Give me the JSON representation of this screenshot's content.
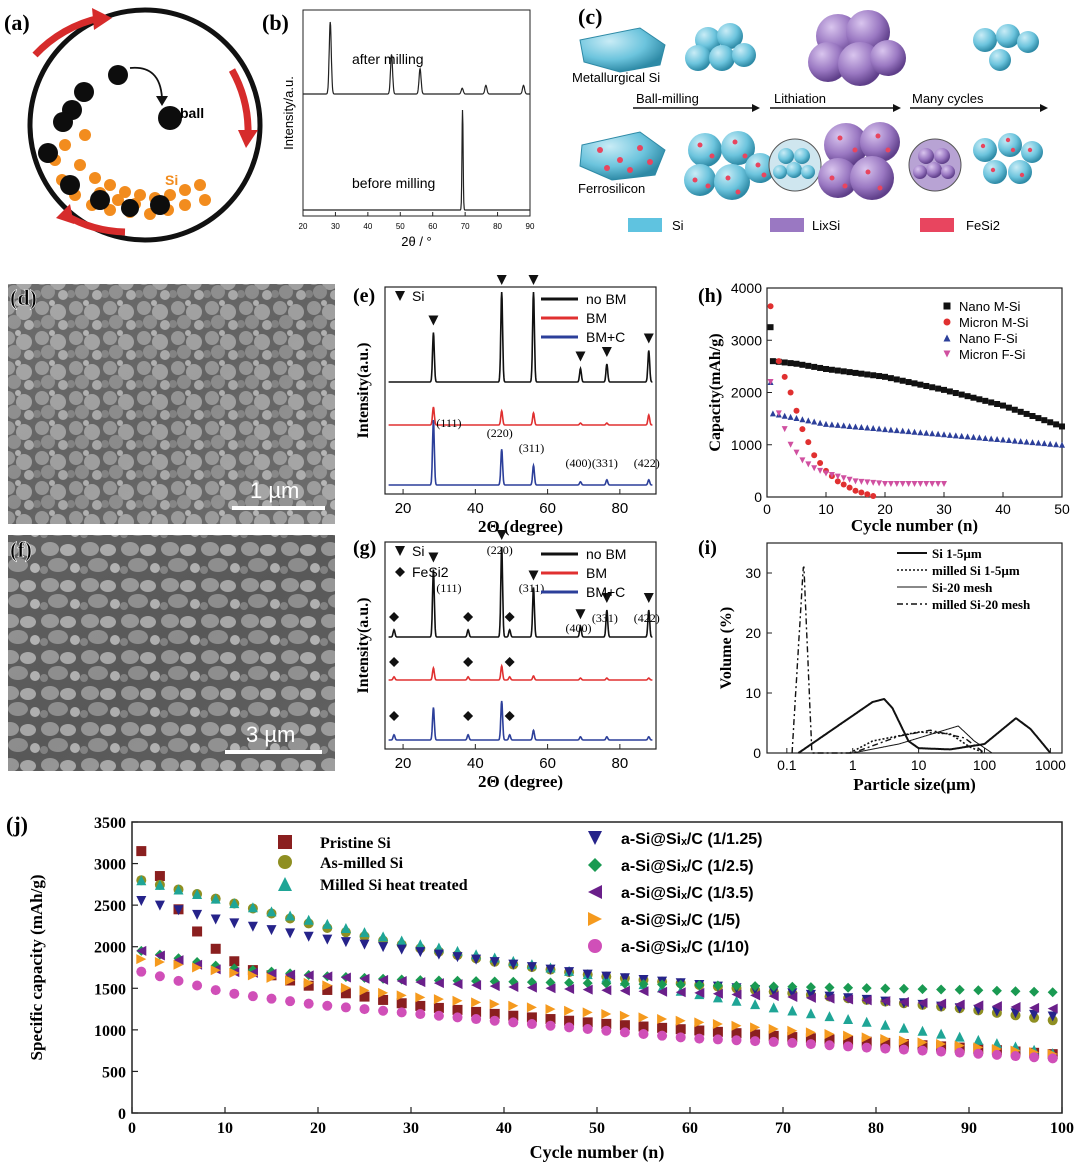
{
  "panel_labels": {
    "a": "(a)",
    "b": "(b)",
    "c": "(c)",
    "d": "(d)",
    "e": "(e)",
    "f": "(f)",
    "g": "(g)",
    "h": "(h)",
    "i": "(i)",
    "j": "(j)"
  },
  "colors": {
    "black": "#111111",
    "red": "#e03030",
    "blue": "#2c3f9a",
    "si": "#5fc3e0",
    "lixsi": "#9a78c2",
    "fesi2": "#e8455f",
    "orange": "#f28c1e"
  },
  "panel_a": {
    "ball_label": "ball",
    "si_label": "Si"
  },
  "panel_c": {
    "labels": {
      "metallurgical": "Metallurgical Si",
      "ferrosilicon": "Ferrosilicon",
      "ball_milling": "Ball-milling",
      "lithiation": "Lithiation",
      "many_cycles": "Many cycles"
    },
    "legend": [
      {
        "name": "Si",
        "color": "#5fc3e0"
      },
      {
        "name": "LixSi",
        "color": "#9a78c2"
      },
      {
        "name": "FeSi2",
        "color": "#e8455f"
      }
    ]
  },
  "panel_d": {
    "scale_bar": "1 µm"
  },
  "panel_f": {
    "scale_bar": "3 µm"
  },
  "chart_data": [
    {
      "id": "b",
      "type": "line",
      "title": "",
      "xlabel": "2θ / °",
      "ylabel": "Intensity/a.u.",
      "xlim": [
        20,
        90
      ],
      "xticks": [
        20,
        30,
        40,
        50,
        60,
        70,
        80,
        90
      ],
      "series": [
        {
          "name": "after milling",
          "peaks": [
            {
              "x": 28.4,
              "h": 1.0
            },
            {
              "x": 47.3,
              "h": 0.55
            },
            {
              "x": 56.1,
              "h": 0.35
            },
            {
              "x": 69.1,
              "h": 0.08
            },
            {
              "x": 76.4,
              "h": 0.12
            },
            {
              "x": 88.0,
              "h": 0.12
            }
          ]
        },
        {
          "name": "before milling",
          "peaks": [
            {
              "x": 69.2,
              "h": 1.0
            }
          ]
        }
      ]
    },
    {
      "id": "e",
      "type": "line",
      "xlabel": "2Θ (degree)",
      "ylabel": "Intensity(a.u.)",
      "xlim": [
        15,
        90
      ],
      "xticks": [
        20,
        40,
        60,
        80
      ],
      "marker_label": "Si",
      "legend": [
        {
          "name": "no BM",
          "color": "#111111"
        },
        {
          "name": "BM",
          "color": "#e03030"
        },
        {
          "name": "BM+C",
          "color": "#2c3f9a"
        }
      ],
      "peak_positions": [
        28.4,
        47.3,
        56.1,
        69.1,
        76.4,
        88.0
      ],
      "hkl": [
        "(111)",
        "(220)",
        "(311)",
        "(400)",
        "(331)",
        "(422)"
      ],
      "series": [
        {
          "name": "no BM",
          "heights": [
            0.55,
            1.0,
            1.0,
            0.15,
            0.2,
            0.35
          ]
        },
        {
          "name": "BM",
          "heights": [
            0.45,
            0.35,
            0.3,
            0.05,
            0.05,
            0.25
          ]
        },
        {
          "name": "BM+C",
          "heights": [
            1.0,
            0.55,
            0.3,
            0.05,
            0.08,
            0.08
          ]
        }
      ]
    },
    {
      "id": "g",
      "type": "line",
      "xlabel": "2Θ (degree)",
      "ylabel": "Intensity(a.u.)",
      "xlim": [
        15,
        90
      ],
      "xticks": [
        20,
        40,
        60,
        80
      ],
      "marker_labels": [
        "Si",
        "FeSi2"
      ],
      "legend": [
        {
          "name": "no BM",
          "color": "#111111"
        },
        {
          "name": "BM",
          "color": "#e03030"
        },
        {
          "name": "BM+C",
          "color": "#2c3f9a"
        }
      ],
      "peak_positions": [
        28.4,
        47.3,
        56.1,
        69.1,
        76.4,
        88.0
      ],
      "hkl": [
        "(111)",
        "(220)",
        "(311)",
        "(400)",
        "(331)",
        "(422)"
      ],
      "fesi2_positions": [
        17.5,
        38.0,
        49.5
      ],
      "series": [
        {
          "name": "no BM",
          "heights": [
            0.75,
            1.0,
            0.55,
            0.12,
            0.3,
            0.3
          ]
        },
        {
          "name": "BM",
          "heights": [
            0.3,
            0.35,
            0.1,
            0.05,
            0.05,
            0.05
          ]
        },
        {
          "name": "BM+C",
          "heights": [
            0.5,
            0.6,
            0.15,
            0.05,
            0.05,
            0.05
          ]
        }
      ]
    },
    {
      "id": "h",
      "type": "scatter",
      "xlabel": "Cycle number (n)",
      "ylabel": "Capacity(mAh/g)",
      "xlim": [
        0,
        50
      ],
      "ylim": [
        0,
        4000
      ],
      "xticks": [
        0,
        10,
        20,
        30,
        40,
        50
      ],
      "yticks": [
        0,
        1000,
        2000,
        3000,
        4000
      ],
      "series": [
        {
          "name": "Nano M-Si",
          "marker": "square",
          "color": "#111111",
          "start": 3250,
          "points": [
            [
              1,
              2600
            ],
            [
              5,
              2550
            ],
            [
              10,
              2450
            ],
            [
              20,
              2300
            ],
            [
              30,
              2050
            ],
            [
              40,
              1750
            ],
            [
              50,
              1350
            ]
          ]
        },
        {
          "name": "Micron M-Si",
          "marker": "circle",
          "color": "#e03030",
          "start": 3650,
          "points": [
            [
              2,
              2600
            ],
            [
              4,
              2000
            ],
            [
              6,
              1300
            ],
            [
              8,
              800
            ],
            [
              10,
              500
            ],
            [
              12,
              300
            ],
            [
              15,
              120
            ],
            [
              18,
              20
            ]
          ]
        },
        {
          "name": "Nano F-Si",
          "marker": "triangle",
          "color": "#2c3f9a",
          "start": 2200,
          "points": [
            [
              1,
              1600
            ],
            [
              10,
              1400
            ],
            [
              20,
              1300
            ],
            [
              30,
              1200
            ],
            [
              40,
              1100
            ],
            [
              50,
              1000
            ]
          ]
        },
        {
          "name": "Micron F-Si",
          "marker": "triangle-down",
          "color": "#d050a0",
          "start": 2200,
          "points": [
            [
              2,
              1600
            ],
            [
              4,
              1000
            ],
            [
              6,
              700
            ],
            [
              8,
              550
            ],
            [
              10,
              450
            ],
            [
              15,
              300
            ],
            [
              20,
              250
            ],
            [
              30,
              250
            ]
          ]
        }
      ]
    },
    {
      "id": "i",
      "type": "line",
      "xlabel": "Particle size(µm)",
      "ylabel": "Volume (%)",
      "xscale": "log",
      "xlim": [
        0.05,
        1500
      ],
      "ylim": [
        0,
        35
      ],
      "xticks": [
        0.1,
        1,
        10,
        100,
        1000
      ],
      "xticklabels": [
        "0.1",
        "1",
        "10",
        "100",
        "1000"
      ],
      "yticks": [
        0,
        10,
        20,
        30
      ],
      "series": [
        {
          "name": "Si 1-5µm",
          "style": "solid-thick",
          "curve": [
            [
              0.15,
              0
            ],
            [
              2,
              8.5
            ],
            [
              3,
              9
            ],
            [
              4,
              7.5
            ],
            [
              7,
              2
            ],
            [
              10,
              0.8
            ],
            [
              30,
              0.6
            ],
            [
              100,
              1.5
            ],
            [
              300,
              5.8
            ],
            [
              500,
              4
            ],
            [
              1000,
              0
            ]
          ]
        },
        {
          "name": "milled Si 1-5µm",
          "style": "dotted",
          "curve": [
            [
              0.9,
              0
            ],
            [
              2,
              2
            ],
            [
              10,
              3.5
            ],
            [
              30,
              3.2
            ],
            [
              60,
              1
            ],
            [
              100,
              0
            ]
          ]
        },
        {
          "name": "Si-20 mesh",
          "style": "solid-thin",
          "curve": [
            [
              1,
              0
            ],
            [
              5,
              1.5
            ],
            [
              20,
              3.5
            ],
            [
              40,
              4.5
            ],
            [
              70,
              2
            ],
            [
              130,
              0
            ]
          ]
        },
        {
          "name": "milled Si-20 mesh",
          "style": "dash-dot",
          "curve": [
            [
              0.12,
              0
            ],
            [
              0.18,
              32
            ],
            [
              0.24,
              0
            ],
            [
              1,
              0
            ],
            [
              5,
              2.8
            ],
            [
              15,
              3.8
            ],
            [
              50,
              2.5
            ],
            [
              100,
              0
            ]
          ]
        }
      ]
    },
    {
      "id": "j",
      "type": "scatter",
      "xlabel": "Cycle number (n)",
      "ylabel": "Specific capacity (mAh/g)",
      "xlim": [
        0,
        100
      ],
      "ylim": [
        0,
        3500
      ],
      "xticks": [
        0,
        10,
        20,
        30,
        40,
        50,
        60,
        70,
        80,
        90,
        100
      ],
      "yticks": [
        0,
        500,
        1000,
        1500,
        2000,
        2500,
        3000,
        3500
      ],
      "series": [
        {
          "name": "Pristine Si",
          "marker": "square",
          "color": "#8a1f1f",
          "points": [
            [
              1,
              3150
            ],
            [
              3,
              2850
            ],
            [
              5,
              2450
            ],
            [
              8,
              2050
            ],
            [
              12,
              1750
            ],
            [
              20,
              1500
            ],
            [
              30,
              1300
            ],
            [
              40,
              1180
            ],
            [
              50,
              1080
            ],
            [
              60,
              1000
            ],
            [
              70,
              920
            ],
            [
              80,
              850
            ],
            [
              90,
              780
            ],
            [
              100,
              700
            ]
          ]
        },
        {
          "name": "As-milled Si",
          "marker": "circle",
          "color": "#8f8f22",
          "points": [
            [
              1,
              2800
            ],
            [
              10,
              2550
            ],
            [
              20,
              2250
            ],
            [
              30,
              2000
            ],
            [
              40,
              1800
            ],
            [
              50,
              1650
            ],
            [
              60,
              1550
            ],
            [
              70,
              1450
            ],
            [
              80,
              1350
            ],
            [
              90,
              1250
            ],
            [
              100,
              1100
            ]
          ]
        },
        {
          "name": "Milled Si heat treated",
          "marker": "triangle",
          "color": "#1fa596",
          "points": [
            [
              1,
              2800
            ],
            [
              10,
              2550
            ],
            [
              20,
              2300
            ],
            [
              30,
              2050
            ],
            [
              40,
              1850
            ],
            [
              50,
              1650
            ],
            [
              60,
              1450
            ],
            [
              70,
              1250
            ],
            [
              80,
              1080
            ],
            [
              90,
              900
            ],
            [
              100,
              700
            ]
          ]
        },
        {
          "name": "a-Si@Si_x/C (1/1.25)",
          "marker": "triangle-down",
          "color": "#26238a",
          "points": [
            [
              1,
              2550
            ],
            [
              10,
              2300
            ],
            [
              20,
              2100
            ],
            [
              30,
              1950
            ],
            [
              40,
              1800
            ],
            [
              50,
              1650
            ],
            [
              60,
              1550
            ],
            [
              70,
              1450
            ],
            [
              80,
              1350
            ],
            [
              90,
              1250
            ],
            [
              100,
              1150
            ]
          ]
        },
        {
          "name": "a-Si@Si_x/C (1/2.5)",
          "marker": "diamond",
          "color": "#1a9a52",
          "points": [
            [
              1,
              1950
            ],
            [
              10,
              1750
            ],
            [
              20,
              1650
            ],
            [
              30,
              1600
            ],
            [
              40,
              1580
            ],
            [
              50,
              1560
            ],
            [
              60,
              1540
            ],
            [
              70,
              1520
            ],
            [
              80,
              1500
            ],
            [
              90,
              1480
            ],
            [
              100,
              1450
            ]
          ]
        },
        {
          "name": "a-Si@Si_x/C (1/3.5)",
          "marker": "triangle-left",
          "color": "#6a1f8a",
          "points": [
            [
              1,
              1950
            ],
            [
              10,
              1700
            ],
            [
              20,
              1650
            ],
            [
              30,
              1580
            ],
            [
              40,
              1520
            ],
            [
              50,
              1480
            ],
            [
              60,
              1450
            ],
            [
              70,
              1400
            ],
            [
              80,
              1350
            ],
            [
              90,
              1300
            ],
            [
              100,
              1250
            ]
          ]
        },
        {
          "name": "a-Si@Si_x/C (1/5)",
          "marker": "triangle-right",
          "color": "#f59a1e",
          "points": [
            [
              1,
              1850
            ],
            [
              10,
              1700
            ],
            [
              20,
              1550
            ],
            [
              30,
              1400
            ],
            [
              40,
              1300
            ],
            [
              50,
              1200
            ],
            [
              60,
              1100
            ],
            [
              70,
              1000
            ],
            [
              80,
              900
            ],
            [
              90,
              800
            ],
            [
              100,
              700
            ]
          ]
        },
        {
          "name": "a-Si@Si_x/C (1/10)",
          "marker": "circle",
          "color": "#d04fb8",
          "points": [
            [
              1,
              1700
            ],
            [
              10,
              1450
            ],
            [
              20,
              1300
            ],
            [
              30,
              1200
            ],
            [
              40,
              1100
            ],
            [
              50,
              1000
            ],
            [
              60,
              900
            ],
            [
              70,
              850
            ],
            [
              80,
              780
            ],
            [
              90,
              720
            ],
            [
              100,
              650
            ]
          ]
        }
      ]
    }
  ]
}
